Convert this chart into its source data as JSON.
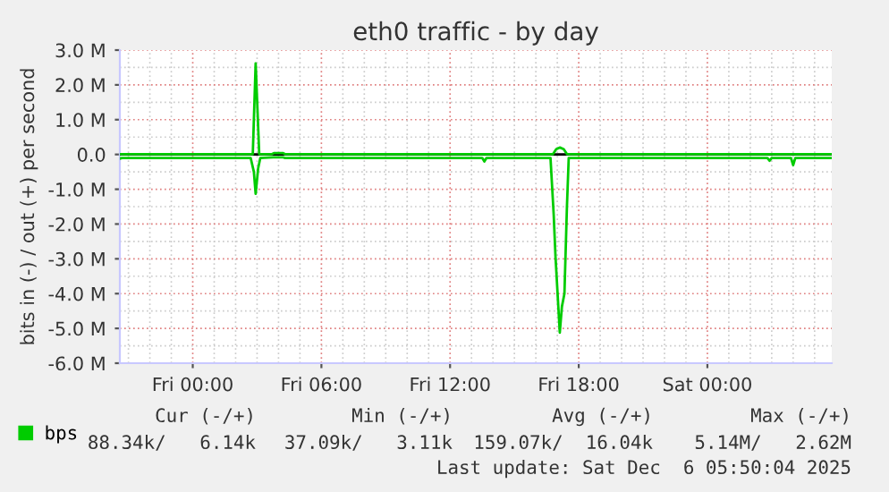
{
  "chart_data": {
    "type": "line",
    "title": "eth0 traffic - by day",
    "ylabel": "bits in (-) / out (+) per second",
    "xlim": [
      "2025-12-04T20:36",
      "2025-12-06T05:48"
    ],
    "xticks": [
      {
        "value": "2025-12-05T00:00",
        "label": "Fri 00:00"
      },
      {
        "value": "2025-12-05T06:00",
        "label": "Fri 06:00"
      },
      {
        "value": "2025-12-05T12:00",
        "label": "Fri 12:00"
      },
      {
        "value": "2025-12-05T18:00",
        "label": "Fri 18:00"
      },
      {
        "value": "2025-12-06T00:00",
        "label": "Sat 00:00"
      }
    ],
    "ylim": [
      -6,
      3
    ],
    "yticks": [
      {
        "value": -6,
        "label": "-6.0 M"
      },
      {
        "value": -5,
        "label": "-5.0 M"
      },
      {
        "value": -4,
        "label": "-4.0 M"
      },
      {
        "value": -3,
        "label": "-3.0 M"
      },
      {
        "value": -2,
        "label": "-2.0 M"
      },
      {
        "value": -1,
        "label": "-1.0 M"
      },
      {
        "value": 0,
        "label": "0.0"
      },
      {
        "value": 1,
        "label": "1.0 M"
      },
      {
        "value": 2,
        "label": "2.0 M"
      },
      {
        "value": 3,
        "label": "3.0 M"
      }
    ],
    "grid": true,
    "legend": "bottom left",
    "ref_lines": [
      {
        "axis": "y",
        "value": 0,
        "color": "#000000"
      }
    ],
    "series": [
      {
        "name": "bps",
        "color": "#00cc00",
        "x": [
          "2025-12-04T20:36",
          "2025-12-04T20:42",
          "2025-12-05T02:42",
          "2025-12-05T02:51",
          "2025-12-05T02:56",
          "2025-12-05T03:03",
          "2025-12-05T03:09",
          "2025-12-05T03:45",
          "2025-12-05T04:12",
          "2025-12-05T04:18",
          "2025-12-05T13:30",
          "2025-12-05T13:36",
          "2025-12-05T13:42",
          "2025-12-05T16:41",
          "2025-12-05T16:50",
          "2025-12-05T16:55",
          "2025-12-05T17:07",
          "2025-12-05T17:13",
          "2025-12-05T17:20",
          "2025-12-05T17:27",
          "2025-12-05T17:32",
          "2025-12-06T02:48",
          "2025-12-06T02:54",
          "2025-12-06T03:00",
          "2025-12-06T03:54",
          "2025-12-06T04:00",
          "2025-12-06T04:06",
          "2025-12-06T05:48"
        ],
        "values": [
          -0.12,
          -0.1,
          -0.1,
          -0.5,
          -1.13,
          -0.4,
          -0.1,
          -0.08,
          -0.08,
          -0.1,
          -0.1,
          -0.2,
          -0.1,
          -0.1,
          -1.74,
          -2.94,
          -5.12,
          -4.37,
          -4.0,
          -1.5,
          -0.1,
          -0.1,
          -0.18,
          -0.1,
          -0.1,
          -0.31,
          -0.1,
          -0.1
        ]
      },
      {
        "color": "#00cc00",
        "x": [
          "2025-12-04T20:36",
          "2025-12-05T02:48",
          "2025-12-05T02:56",
          "2025-12-05T03:06",
          "2025-12-05T03:42",
          "2025-12-05T03:48",
          "2025-12-05T04:12",
          "2025-12-05T04:18",
          "2025-12-05T16:48",
          "2025-12-05T16:57",
          "2025-12-05T17:07",
          "2025-12-05T17:18",
          "2025-12-05T17:27",
          "2025-12-06T05:48"
        ],
        "values": [
          0.01,
          0.01,
          2.62,
          0.01,
          0.01,
          0.04,
          0.04,
          0.01,
          0.01,
          0.15,
          0.2,
          0.15,
          0.01,
          0.01
        ]
      }
    ],
    "annotations": [
      "Cur (-/+)",
      "Min (-/+)",
      "Avg (-/+)",
      "Max (-/+)",
      "88.34k/   6.14k",
      "37.09k/   3.11k",
      "159.07k/  16.04k",
      "5.14M/   2.62M",
      "Last update: Sat Dec  6 05:50:04 2025"
    ]
  }
}
